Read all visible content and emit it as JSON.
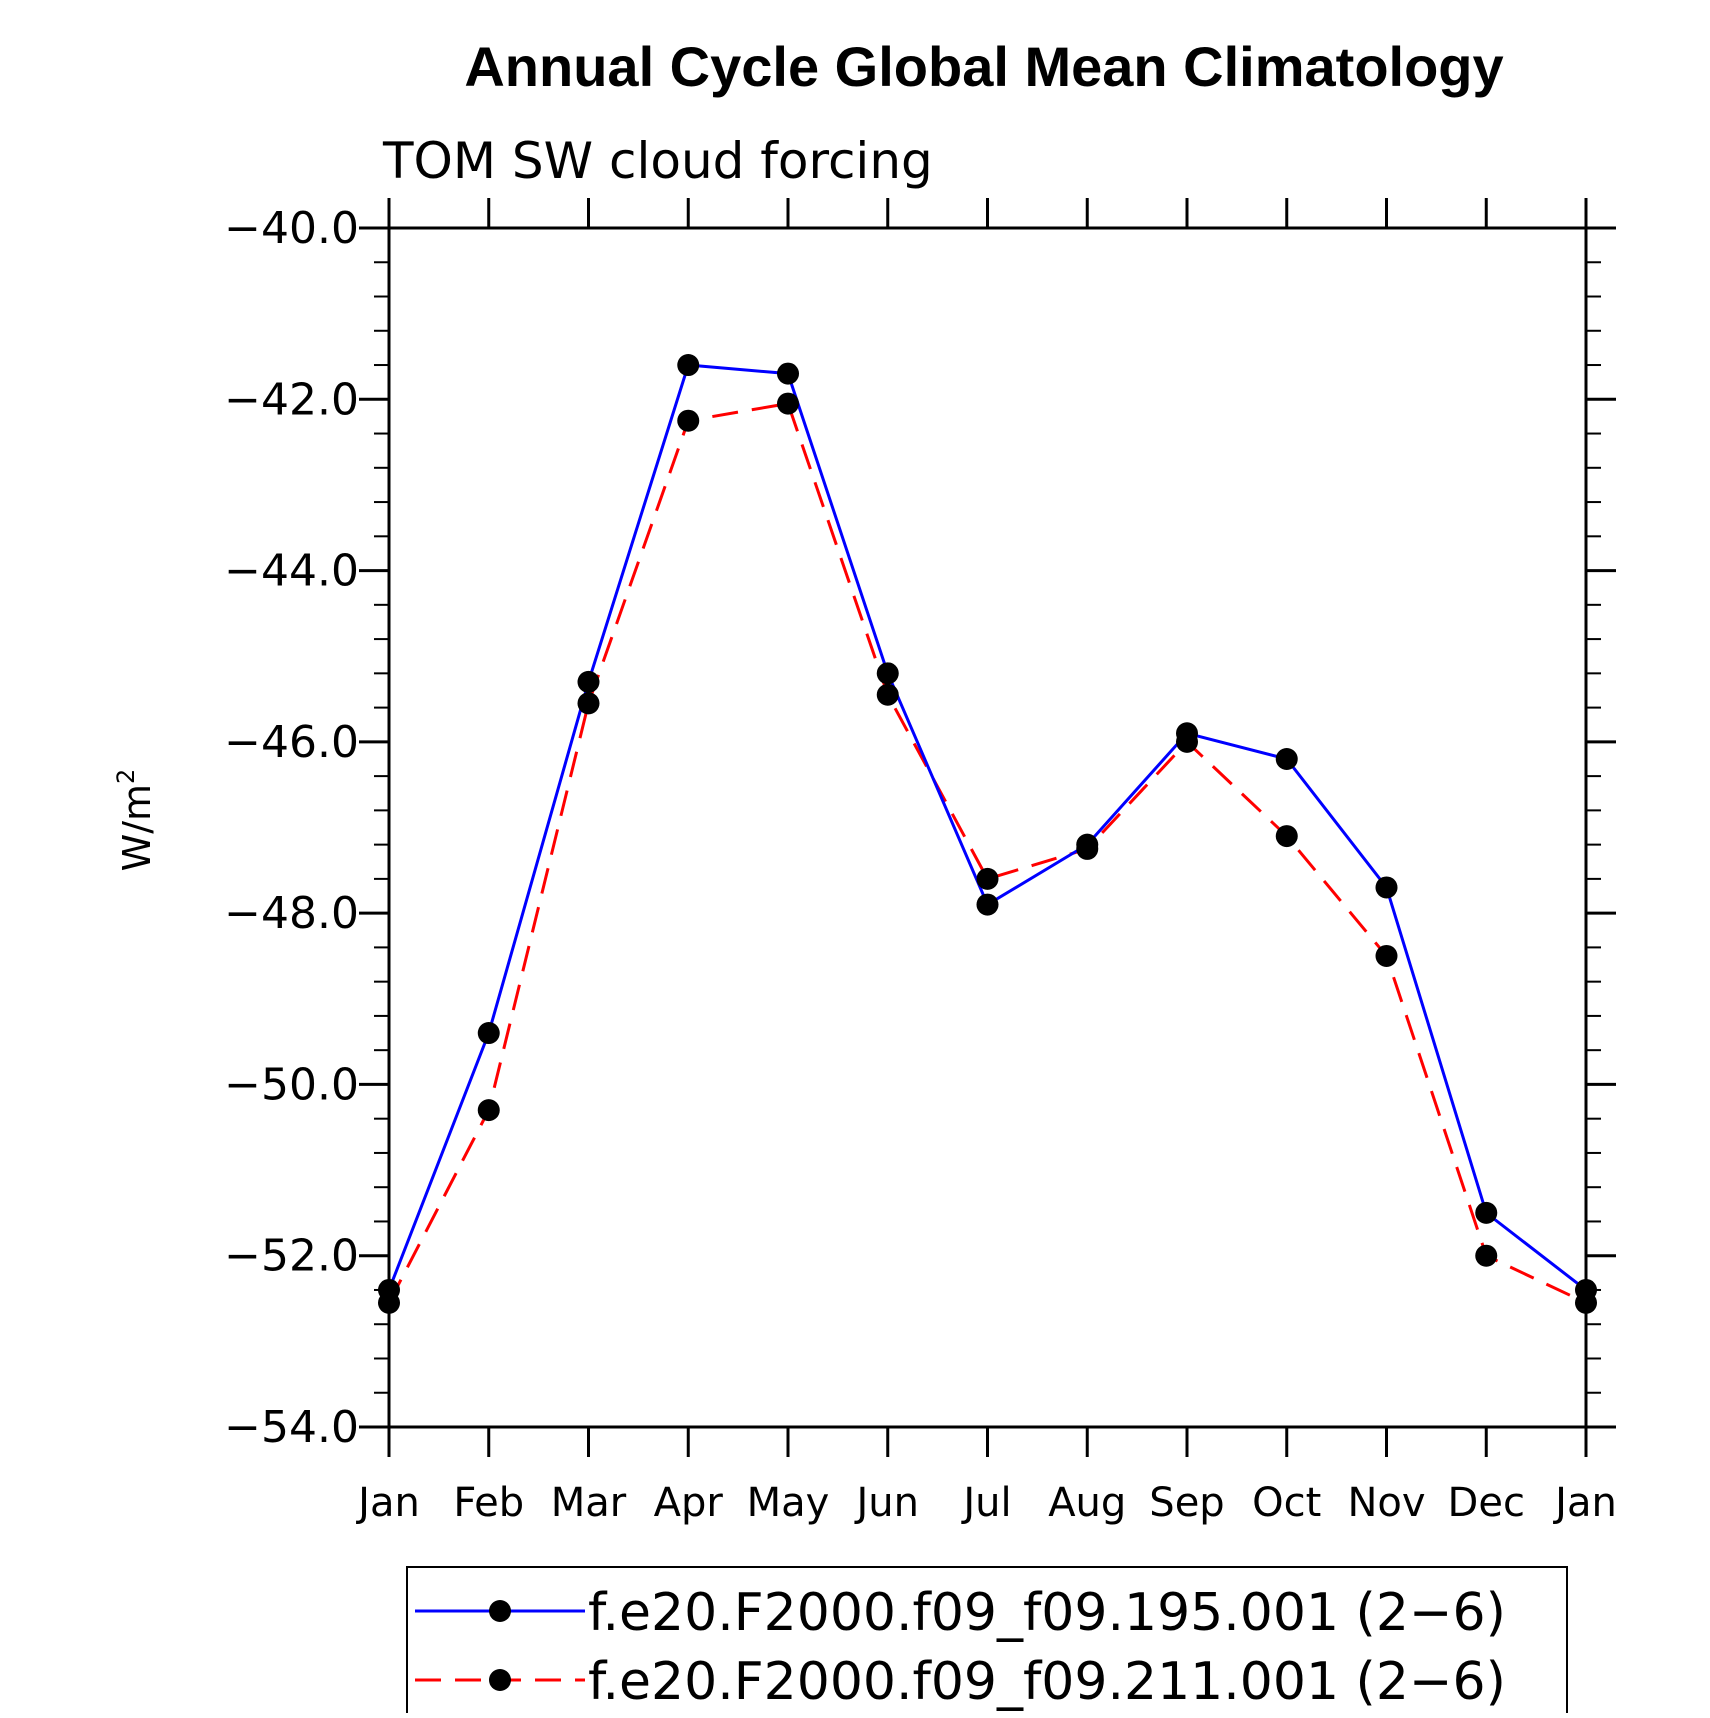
{
  "chart_data": {
    "type": "line",
    "title": "Annual Cycle Global Mean Climatology",
    "subtitle": "TOM SW cloud forcing",
    "ylabel": "W/m",
    "ylabel_superscript": "2",
    "ylim": [
      -54.0,
      -40.0
    ],
    "ytick_labels": [
      "−40.0",
      "−42.0",
      "−44.0",
      "−46.0",
      "−48.0",
      "−50.0",
      "−52.0",
      "−54.0"
    ],
    "ytick_values": [
      -40,
      -42,
      -44,
      -46,
      -48,
      -50,
      -52,
      -54
    ],
    "categories": [
      "Jan",
      "Feb",
      "Mar",
      "Apr",
      "May",
      "Jun",
      "Jul",
      "Aug",
      "Sep",
      "Oct",
      "Nov",
      "Dec",
      "Jan"
    ],
    "grid": false,
    "legend_position": "bottom",
    "series": [
      {
        "name": "f.e20.F2000.f09_f09.195.001 (2−6)",
        "color": "#0000ff",
        "dash": "solid",
        "marker": "filled-circle",
        "values": [
          -52.4,
          -49.4,
          -45.3,
          -41.6,
          -41.7,
          -45.2,
          -47.9,
          -47.2,
          -45.9,
          -46.2,
          -47.7,
          -51.5,
          -52.4
        ]
      },
      {
        "name": "f.e20.F2000.f09_f09.211.001 (2−6)",
        "color": "#ff0000",
        "dash": "dashed",
        "marker": "filled-circle",
        "values": [
          -52.55,
          -50.3,
          -45.55,
          -42.25,
          -42.05,
          -45.45,
          -47.6,
          -47.25,
          -46.0,
          -47.1,
          -48.5,
          -52.0,
          -52.55
        ]
      }
    ]
  }
}
